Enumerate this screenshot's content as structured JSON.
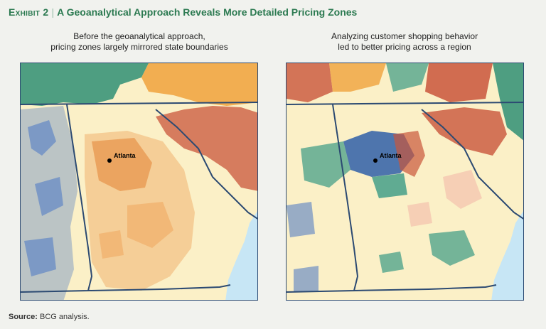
{
  "header": {
    "exhibit": "Exhibit 2",
    "title": "A Geoanalytical Approach Reveals More Detailed Pricing Zones"
  },
  "panels": [
    {
      "caption_line1": "Before the geoanalytical approach,",
      "caption_line2": "pricing zones largely mirrored state boundaries",
      "city_label": "Atlanta"
    },
    {
      "caption_line1": "Analyzing customer shopping behavior",
      "caption_line2": "led to better pricing across a region",
      "city_label": "Atlanta"
    }
  ],
  "source": {
    "label": "Source:",
    "text": "BCG analysis."
  },
  "colors": {
    "land": "#fbf0c7",
    "water": "#c7e6f5",
    "boundary": "#2c4a72",
    "orange": "#f1b36f",
    "teal": "#2f8f74",
    "blue": "#6d8fc4",
    "red": "#c9553b",
    "green": "#3a9a84",
    "dark_blue": "#2f5fa8"
  }
}
